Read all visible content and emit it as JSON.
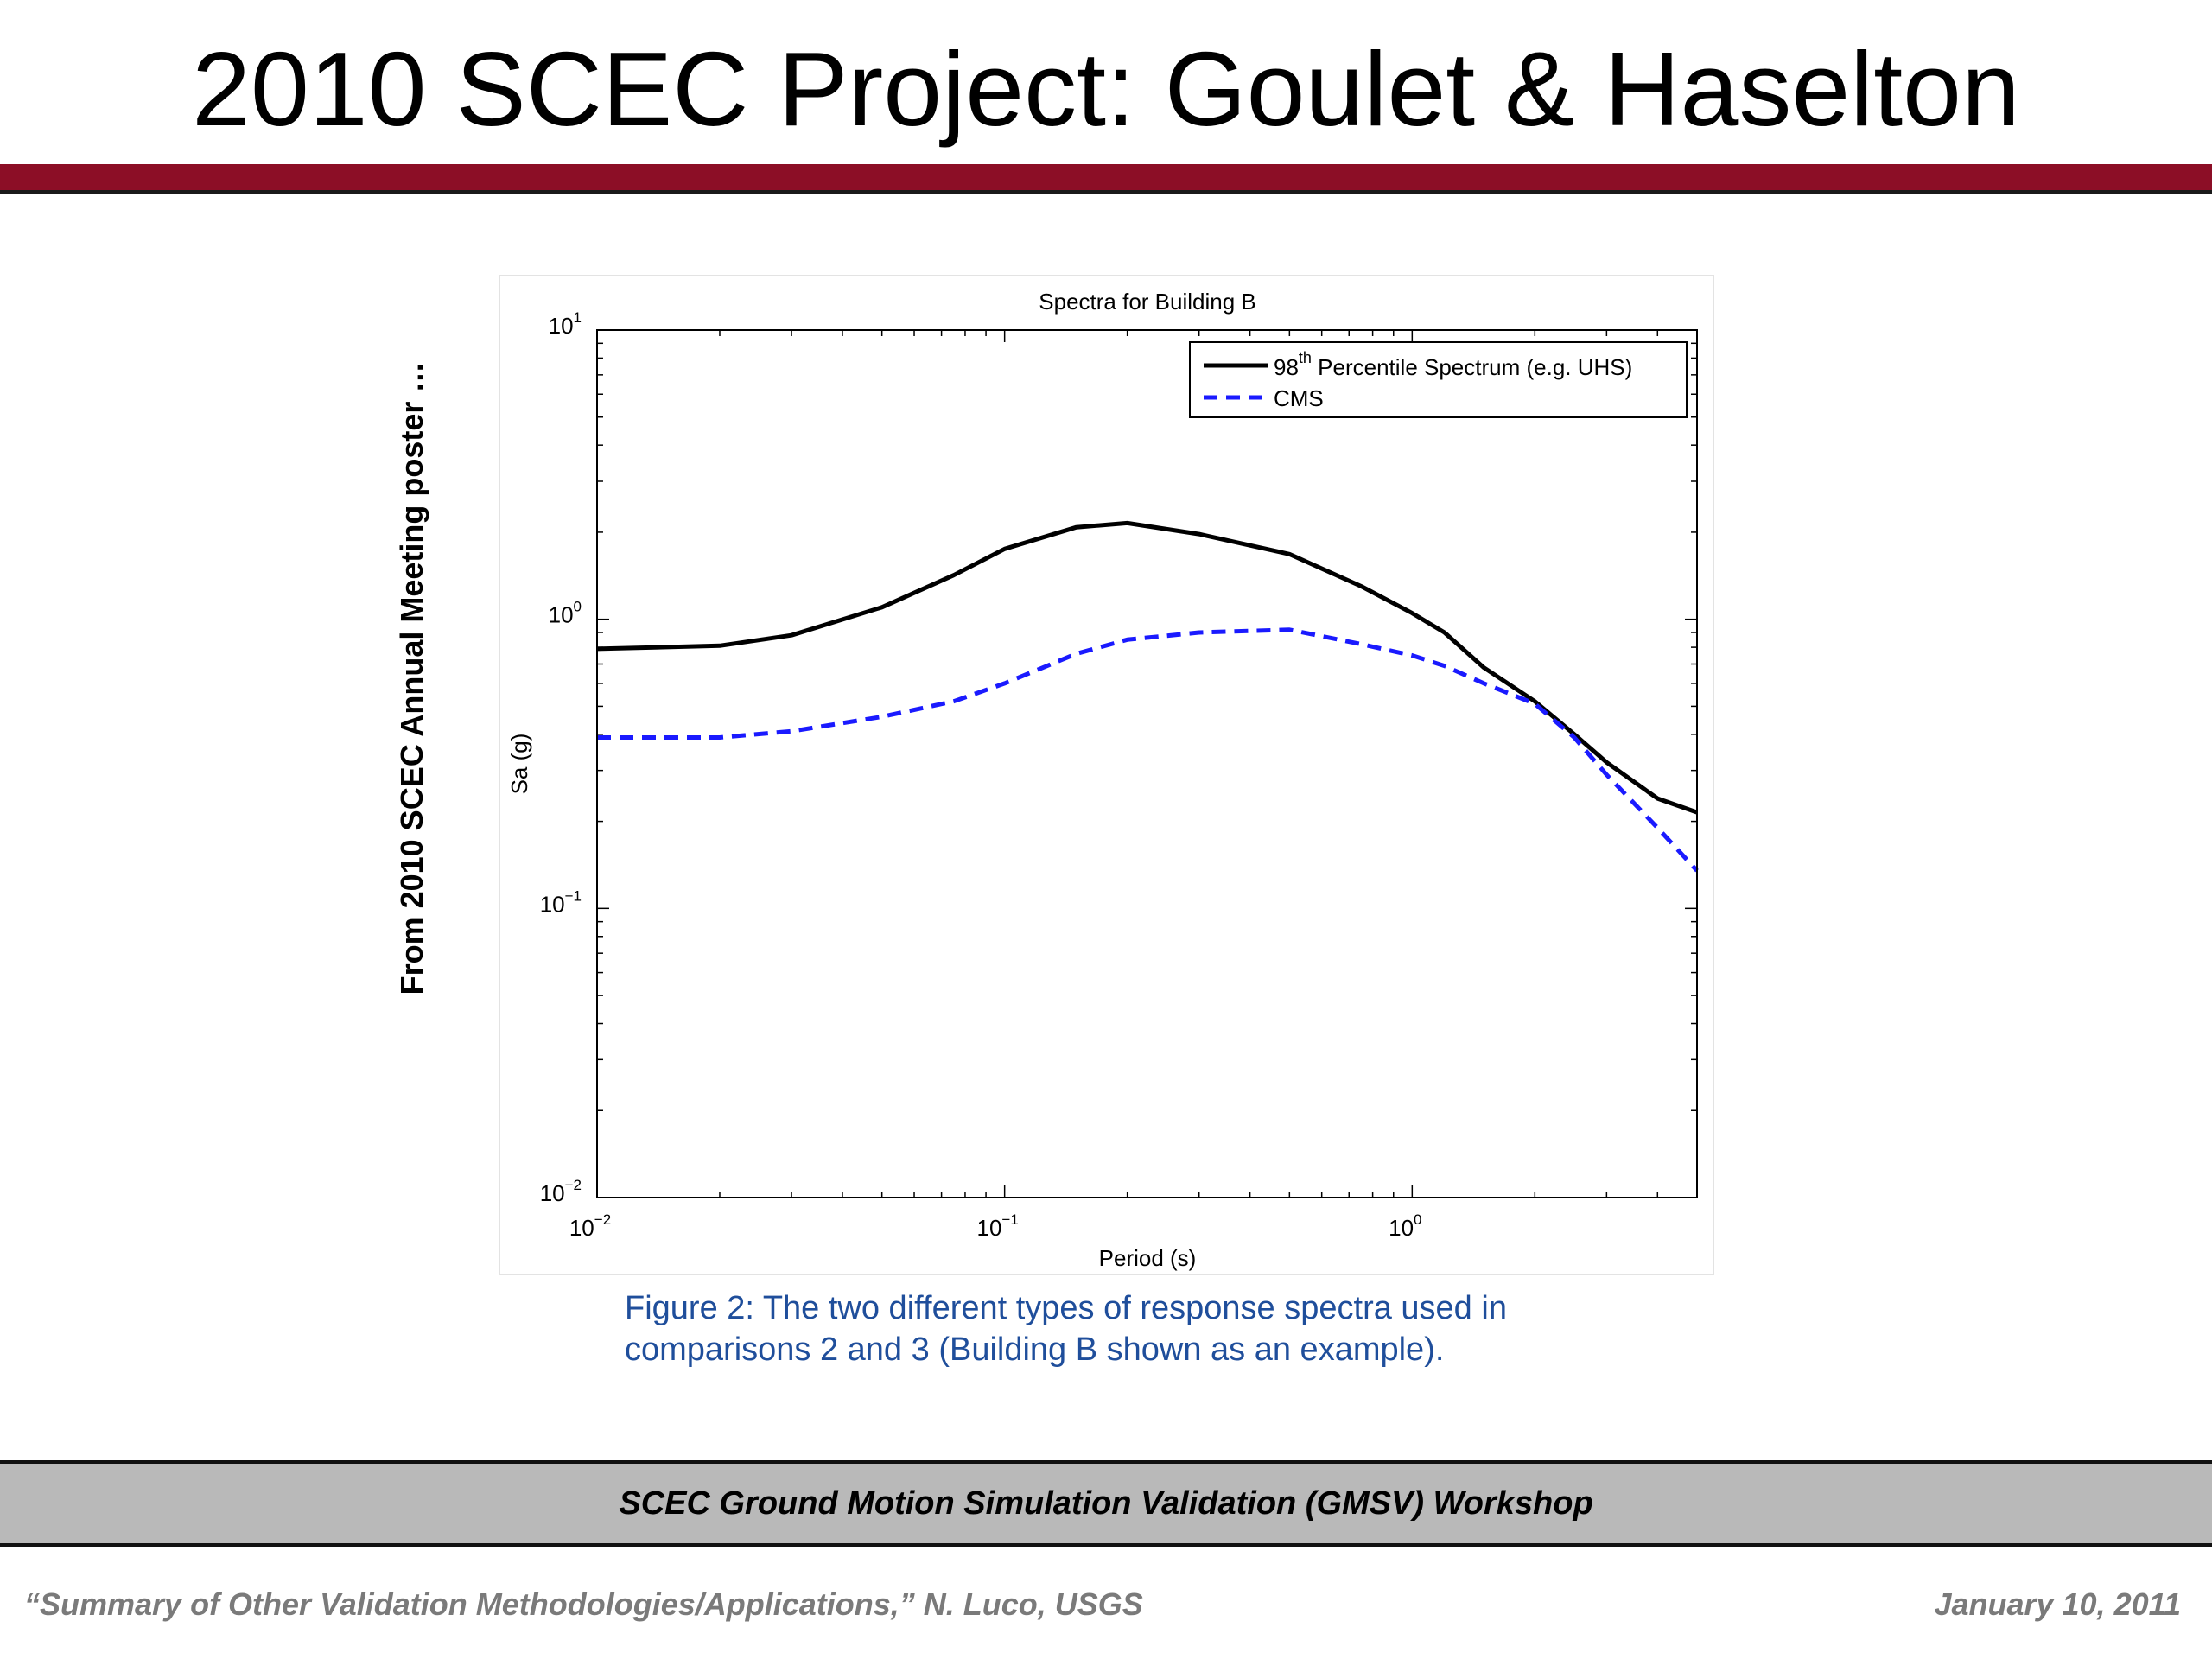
{
  "slide": {
    "title": "2010 SCEC Project: Goulet & Haselton",
    "side_note": "From 2010 SCEC Annual Meeting poster …",
    "caption_line1": "Figure 2: The two different types of response spectra used in",
    "caption_line2": "comparisons 2 and 3 (Building B shown as an example).",
    "footer_bar": "SCEC Ground Motion Simulation Validation (GMSV) Workshop",
    "footer_left": "“Summary of Other Validation Methodologies/Applications,” N. Luco, USGS",
    "footer_right": "January 10, 2011"
  },
  "colors": {
    "title_rule": "#8c0e26",
    "uhs_line": "#000000",
    "cms_line": "#1a1aff",
    "caption": "#1f4e9b",
    "footer_bar": "#b9b9b9",
    "footer_text": "#7a7a7a"
  },
  "chart_data": {
    "type": "line",
    "title": "Spectra for Building B",
    "xlabel": "Period (s)",
    "ylabel": "Sa (g)",
    "xscale": "log",
    "yscale": "log",
    "xlim": [
      0.01,
      5
    ],
    "ylim": [
      0.01,
      10
    ],
    "x_ticks": [
      {
        "value": 0.01,
        "base": "10",
        "exp": "−2"
      },
      {
        "value": 0.1,
        "base": "10",
        "exp": "−1"
      },
      {
        "value": 1,
        "base": "10",
        "exp": "0"
      }
    ],
    "y_ticks": [
      {
        "value": 0.01,
        "base": "10",
        "exp": "−2"
      },
      {
        "value": 0.1,
        "base": "10",
        "exp": "−1"
      },
      {
        "value": 1,
        "base": "10",
        "exp": "0"
      },
      {
        "value": 10,
        "base": "10",
        "exp": "1"
      }
    ],
    "grid": false,
    "legend_position": "top-right",
    "series": [
      {
        "name_prefix": "98",
        "name_sup": "th",
        "name_suffix": " Percentile Spectrum (e.g. UHS)",
        "style": "solid",
        "color": "#000000",
        "points": [
          [
            0.01,
            0.79
          ],
          [
            0.02,
            0.81
          ],
          [
            0.03,
            0.88
          ],
          [
            0.05,
            1.1
          ],
          [
            0.075,
            1.42
          ],
          [
            0.1,
            1.75
          ],
          [
            0.15,
            2.08
          ],
          [
            0.2,
            2.15
          ],
          [
            0.3,
            1.97
          ],
          [
            0.5,
            1.68
          ],
          [
            0.75,
            1.3
          ],
          [
            1.0,
            1.05
          ],
          [
            1.2,
            0.9
          ],
          [
            1.5,
            0.68
          ],
          [
            2.0,
            0.52
          ],
          [
            2.5,
            0.4
          ],
          [
            3.0,
            0.32
          ],
          [
            4.0,
            0.24
          ],
          [
            5.0,
            0.215
          ]
        ]
      },
      {
        "name": "CMS",
        "style": "dashed",
        "color": "#1a1aff",
        "points": [
          [
            0.01,
            0.39
          ],
          [
            0.02,
            0.39
          ],
          [
            0.03,
            0.41
          ],
          [
            0.05,
            0.46
          ],
          [
            0.075,
            0.52
          ],
          [
            0.1,
            0.6
          ],
          [
            0.15,
            0.76
          ],
          [
            0.2,
            0.85
          ],
          [
            0.3,
            0.9
          ],
          [
            0.5,
            0.92
          ],
          [
            0.75,
            0.82
          ],
          [
            1.0,
            0.75
          ],
          [
            1.2,
            0.69
          ],
          [
            1.5,
            0.6
          ],
          [
            2.0,
            0.51
          ],
          [
            2.5,
            0.39
          ],
          [
            3.0,
            0.29
          ],
          [
            4.0,
            0.19
          ],
          [
            5.0,
            0.135
          ]
        ]
      }
    ]
  }
}
